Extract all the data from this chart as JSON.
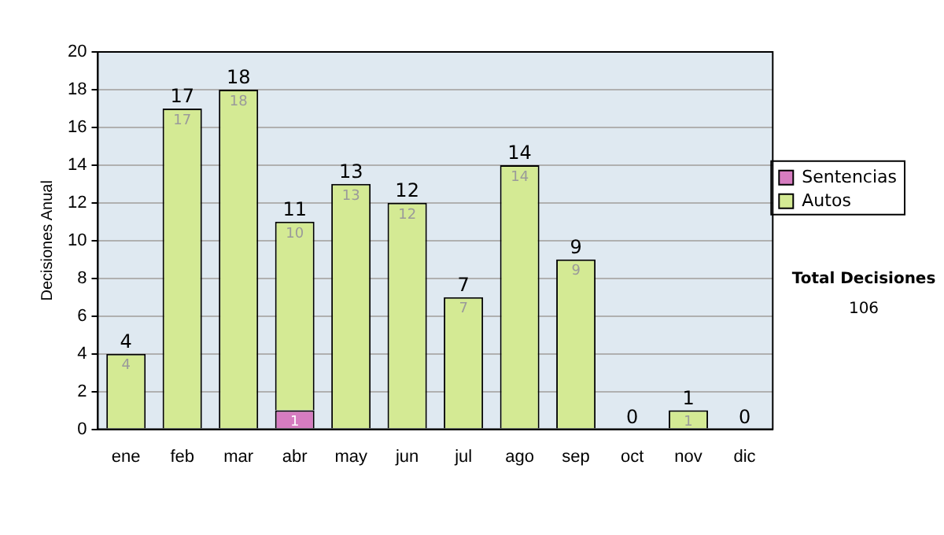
{
  "chart_data": {
    "type": "bar",
    "stacked": true,
    "ylabel": "Decisiones Anual",
    "categories": [
      "ene",
      "feb",
      "mar",
      "abr",
      "may",
      "jun",
      "jul",
      "ago",
      "sep",
      "oct",
      "nov",
      "dic"
    ],
    "series": [
      {
        "name": "Sentencias",
        "color": "#d67cc0",
        "values": [
          0,
          0,
          0,
          1,
          0,
          0,
          0,
          0,
          0,
          0,
          0,
          0
        ],
        "value_labels": [
          null,
          null,
          null,
          "1",
          null,
          null,
          null,
          null,
          null,
          null,
          null,
          null
        ]
      },
      {
        "name": "Autos",
        "color": "#d4ea94",
        "values": [
          4,
          17,
          18,
          10,
          13,
          12,
          7,
          14,
          9,
          0,
          1,
          0
        ],
        "value_labels": [
          "4",
          "17",
          "18",
          "10",
          "13",
          "12",
          "7",
          "14",
          "9",
          null,
          "1",
          null
        ]
      }
    ],
    "totals": [
      "4",
      "17",
      "18",
      "11",
      "13",
      "12",
      "7",
      "14",
      "9",
      "0",
      "1",
      "0"
    ],
    "ylim": [
      0,
      20
    ],
    "yticks": [
      0,
      2,
      4,
      6,
      8,
      10,
      12,
      14,
      16,
      18,
      20
    ],
    "grid": "y",
    "legend": "right",
    "annotations": [
      "Total Decisiones",
      "106"
    ]
  }
}
